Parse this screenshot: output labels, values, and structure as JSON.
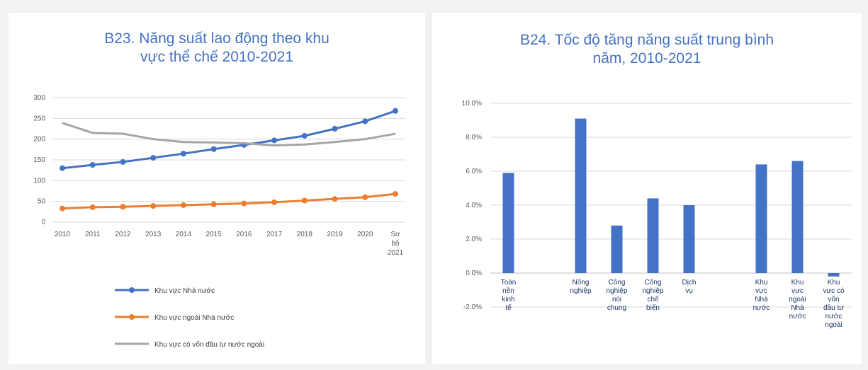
{
  "charts": [
    {
      "title_line1": "B23. Năng suất lao động theo khu",
      "title_line2": "vực thể chế 2010-2021"
    },
    {
      "title_line1": "B24. Tốc độ tăng năng suất trung bình",
      "title_line2": "năm, 2010-2021"
    }
  ],
  "colors": {
    "state": "#4472c4",
    "nonstate": "#ed7d31",
    "fdi": "#a5a5a5",
    "bar": "#4472c4"
  },
  "chart_data": [
    {
      "type": "line",
      "title": "B23. Năng suất lao động theo khu vực thể chế 2010-2021",
      "x": [
        "2010",
        "2011",
        "2012",
        "2013",
        "2014",
        "2015",
        "2016",
        "2017",
        "2018",
        "2019",
        "2020",
        "Sơ bộ 2021"
      ],
      "ylim": [
        0,
        300
      ],
      "yticks": [
        "0",
        "50",
        "100",
        "150",
        "200",
        "250",
        "300"
      ],
      "grid": true,
      "legend_position": "bottom",
      "series": [
        {
          "name": "Khu vực Nhà nước",
          "color": "#4472c4",
          "marker": true,
          "values": [
            130,
            138,
            145,
            155,
            165,
            176,
            186,
            197,
            208,
            225,
            243,
            268
          ]
        },
        {
          "name": "Khu vực ngoài Nhà nước",
          "color": "#ed7d31",
          "marker": true,
          "values": [
            33,
            36,
            37,
            39,
            41,
            43,
            45,
            48,
            52,
            56,
            60,
            68
          ]
        },
        {
          "name": "Khu vực có vốn đầu tư nước ngoài",
          "color": "#a5a5a5",
          "marker": false,
          "values": [
            239,
            215,
            213,
            200,
            193,
            192,
            190,
            185,
            187,
            193,
            200,
            213
          ]
        }
      ]
    },
    {
      "type": "bar",
      "title": "B24. Tốc độ tăng năng suất trung bình năm, 2010-2021",
      "categories": [
        "Toàn nền kinh tế",
        "Nông nghiệp",
        "Công nghiệp nói chung",
        "Công nghiệp chế biến",
        "Dịch vụ",
        "Khu vực Nhà nước",
        "Khu vực ngoài Nhà nước",
        "Khu vực có vốn đầu tư nước ngoài"
      ],
      "values": [
        5.9,
        9.1,
        2.8,
        4.4,
        4.0,
        6.4,
        6.6,
        -0.2
      ],
      "slots": [
        0,
        2,
        3,
        4,
        5,
        7,
        8,
        9
      ],
      "ylim": [
        -2,
        10
      ],
      "yticks": [
        "-2.0%",
        "0.0%",
        "2.0%",
        "4.0%",
        "6.0%",
        "8.0%",
        "10.0%"
      ],
      "grid": true
    }
  ]
}
